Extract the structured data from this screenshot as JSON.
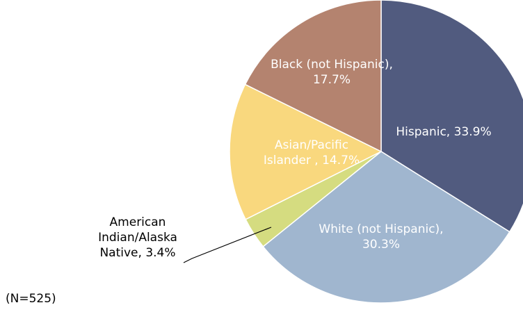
{
  "chart_data": {
    "type": "pie",
    "start_angle_deg": 0,
    "direction": "clockwise",
    "slices": [
      {
        "label": "Hispanic",
        "value": 33.9,
        "display": [
          "Hispanic, 33.9%"
        ],
        "color": "#515B7F",
        "label_style": "inside"
      },
      {
        "label": "White (not Hispanic)",
        "value": 30.3,
        "display": [
          "White (not Hispanic),",
          "30.3%"
        ],
        "color": "#A0B6CF",
        "label_style": "inside"
      },
      {
        "label": "American Indian/Alaska Native",
        "value": 3.4,
        "display": [
          "American",
          "Indian/Alaska",
          "Native, 3.4%"
        ],
        "color": "#D5DC80",
        "label_style": "outside"
      },
      {
        "label": "Asian/Pacific Islander",
        "value": 14.7,
        "display": [
          "Asian/Pacific",
          "Islander , 14.7%"
        ],
        "color": "#F9D87E",
        "label_style": "inside"
      },
      {
        "label": "Black (not Hispanic)",
        "value": 17.7,
        "display": [
          "Black (not Hispanic),",
          "17.7%"
        ],
        "color": "#B4836F",
        "label_style": "inside"
      }
    ],
    "note": "(N=525)"
  }
}
